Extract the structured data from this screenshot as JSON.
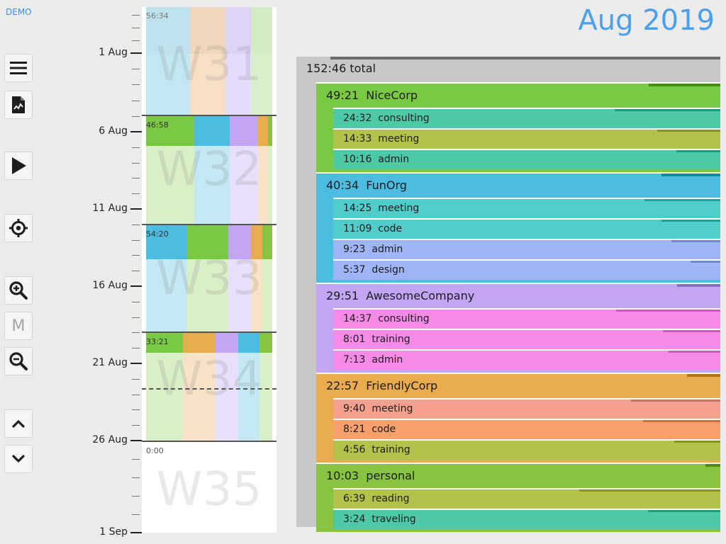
{
  "header": {
    "demo_label": "DEMO",
    "title": "Aug 2019"
  },
  "toolbar": {
    "menu_icon": "hamburger-icon",
    "report_icon": "report-icon",
    "play_icon": "play-icon",
    "locate_icon": "crosshair-icon",
    "zoom_in_icon": "zoom-in-icon",
    "month_label": "M",
    "zoom_out_icon": "zoom-out-icon",
    "up_icon": "chevron-up-icon",
    "down_icon": "chevron-down-icon"
  },
  "timeline": {
    "date_labels": [
      "1 Aug",
      "6 Aug",
      "11 Aug",
      "16 Aug",
      "21 Aug",
      "26 Aug",
      "1 Sep"
    ],
    "weeks": [
      {
        "label": "W31",
        "total": "56:34"
      },
      {
        "label": "W32",
        "total": "46:58"
      },
      {
        "label": "W33",
        "total": "54:20"
      },
      {
        "label": "W34",
        "total": "33:21"
      },
      {
        "label": "W35",
        "total": "0:00"
      }
    ]
  },
  "summary": {
    "total": {
      "time": "152:46",
      "label": "total"
    },
    "groups": [
      {
        "time": "49:21",
        "name": "NiceCorp",
        "color": "#7ac943",
        "items": [
          {
            "time": "24:32",
            "name": "consulting",
            "color": "#4ec9a8"
          },
          {
            "time": "14:33",
            "name": "meeting",
            "color": "#b3c24a"
          },
          {
            "time": "10:16",
            "name": "admin",
            "color": "#4ec9a8"
          }
        ]
      },
      {
        "time": "40:34",
        "name": "FunOrg",
        "color": "#4cbde0",
        "items": [
          {
            "time": "14:25",
            "name": "meeting",
            "color": "#52cbcb"
          },
          {
            "time": "11:09",
            "name": "code",
            "color": "#52cbcb"
          },
          {
            "time": "9:23",
            "name": "admin",
            "color": "#9fb5f5"
          },
          {
            "time": "5:37",
            "name": "design",
            "color": "#9fb5f5"
          }
        ]
      },
      {
        "time": "29:51",
        "name": "AwesomeCompany",
        "color": "#c2a6f5",
        "items": [
          {
            "time": "14:37",
            "name": "consulting",
            "color": "#f58be6"
          },
          {
            "time": "8:01",
            "name": "training",
            "color": "#f58be6"
          },
          {
            "time": "7:13",
            "name": "admin",
            "color": "#f58be6"
          }
        ]
      },
      {
        "time": "22:57",
        "name": "FriendlyCorp",
        "color": "#e9ab4c",
        "items": [
          {
            "time": "9:40",
            "name": "meeting",
            "color": "#f6a08e"
          },
          {
            "time": "8:21",
            "name": "code",
            "color": "#f8a06c"
          },
          {
            "time": "4:56",
            "name": "training",
            "color": "#b3c24a"
          }
        ]
      },
      {
        "time": "10:03",
        "name": "personal",
        "color": "#86c441",
        "items": [
          {
            "time": "6:39",
            "name": "reading",
            "color": "#b3c24a"
          },
          {
            "time": "3:24",
            "name": "traveling",
            "color": "#4ec9a8"
          }
        ]
      }
    ]
  }
}
